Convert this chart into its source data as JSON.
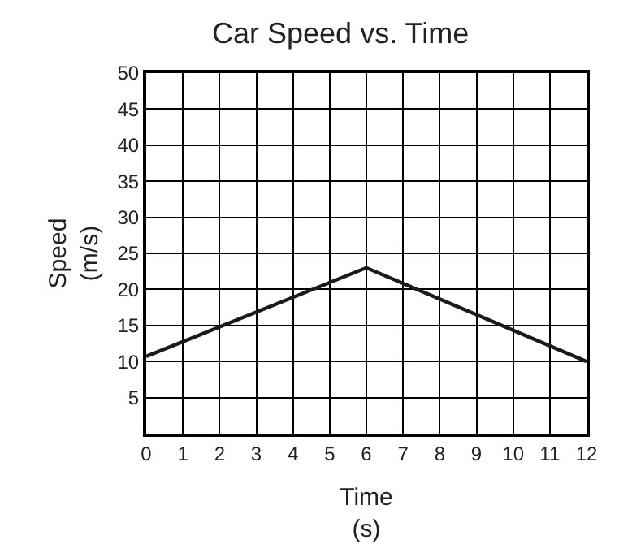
{
  "chart_data": {
    "type": "line",
    "title": "Car Speed vs. Time",
    "xlabel": "Time\n(s)",
    "ylabel": "Speed\n(m/s)",
    "x": [
      0,
      6,
      12
    ],
    "series": [
      {
        "color": "#1a1a1a",
        "values": [
          10.7,
          23,
          10
        ]
      }
    ],
    "xlim": [
      0,
      12
    ],
    "xticks": [
      0,
      1,
      2,
      3,
      4,
      5,
      6,
      7,
      8,
      9,
      10,
      11,
      12
    ],
    "ylim": [
      0,
      50
    ],
    "yticks": [
      {
        "value": 0,
        "label": null
      },
      5,
      10,
      15,
      20,
      25,
      30,
      35,
      40,
      45,
      50
    ],
    "grid": true,
    "legend": false,
    "marker": "none",
    "line_style": "solid"
  }
}
